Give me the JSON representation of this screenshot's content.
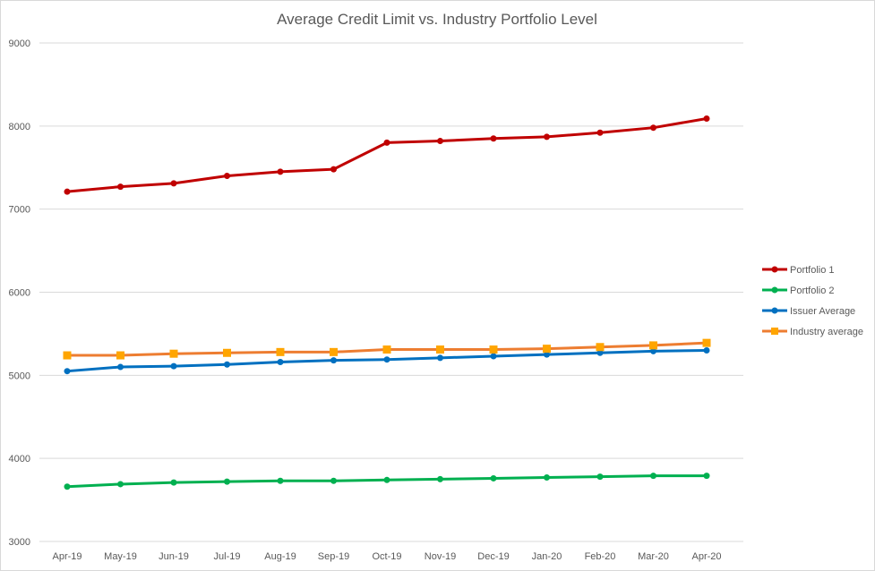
{
  "chart_data": {
    "type": "line",
    "title": "Average Credit Limit vs. Industry Portfolio Level",
    "xlabel": "",
    "ylabel": "",
    "ylim": [
      3000,
      9000
    ],
    "yticks": [
      3000,
      4000,
      5000,
      6000,
      7000,
      8000,
      9000
    ],
    "grid": true,
    "legend_position": "right",
    "categories": [
      "Apr-19",
      "May-19",
      "Jun-19",
      "Jul-19",
      "Aug-19",
      "Sep-19",
      "Oct-19",
      "Nov-19",
      "Dec-19",
      "Jan-20",
      "Feb-20",
      "Mar-20",
      "Apr-20"
    ],
    "series": [
      {
        "name": "Portfolio 1",
        "color": "#C00000",
        "marker": "circle",
        "values": [
          7210,
          7270,
          7310,
          7400,
          7450,
          7480,
          7800,
          7820,
          7850,
          7870,
          7920,
          7980,
          8090
        ]
      },
      {
        "name": "Portfolio 2",
        "color": "#00B050",
        "marker": "circle",
        "values": [
          3660,
          3690,
          3710,
          3720,
          3730,
          3730,
          3740,
          3750,
          3760,
          3770,
          3780,
          3790,
          3790
        ]
      },
      {
        "name": "Issuer Average",
        "color": "#0070C0",
        "marker": "circle",
        "values": [
          5050,
          5100,
          5110,
          5130,
          5160,
          5180,
          5190,
          5210,
          5230,
          5250,
          5270,
          5290,
          5300
        ]
      },
      {
        "name": "Industry average",
        "color": "#ED7D31",
        "markerColor": "#FFA500",
        "marker": "square",
        "values": [
          5240,
          5240,
          5260,
          5270,
          5280,
          5280,
          5310,
          5310,
          5310,
          5320,
          5340,
          5360,
          5390
        ]
      }
    ]
  }
}
